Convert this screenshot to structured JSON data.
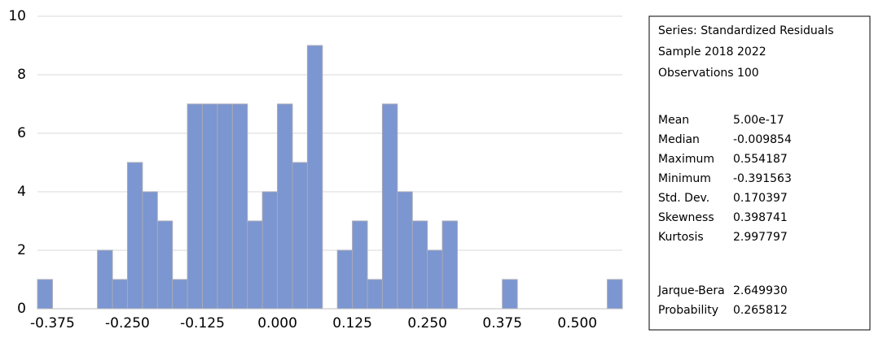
{
  "chart_data": {
    "type": "histogram",
    "bins": [
      -0.4,
      -0.375,
      -0.35,
      -0.325,
      -0.3,
      -0.275,
      -0.25,
      -0.225,
      -0.2,
      -0.175,
      -0.15,
      -0.125,
      -0.1,
      -0.075,
      -0.05,
      -0.025,
      0.0,
      0.025,
      0.05,
      0.075,
      0.1,
      0.125,
      0.15,
      0.175,
      0.2,
      0.225,
      0.25,
      0.275,
      0.3,
      0.325,
      0.35,
      0.375,
      0.4,
      0.425,
      0.45,
      0.475,
      0.5,
      0.525,
      0.55,
      0.575
    ],
    "values": [
      1,
      0,
      0,
      0,
      2,
      1,
      5,
      4,
      3,
      1,
      7,
      7,
      7,
      7,
      3,
      4,
      7,
      5,
      9,
      0,
      2,
      3,
      1,
      7,
      4,
      3,
      2,
      3,
      0,
      0,
      0,
      1,
      0,
      0,
      0,
      0,
      0,
      0,
      1
    ],
    "color": "#7b96d0",
    "xlim": [
      -0.4,
      0.575
    ],
    "xticks": [
      {
        "value": -0.375,
        "label": "-0.375"
      },
      {
        "value": -0.25,
        "label": "-0.250"
      },
      {
        "value": -0.125,
        "label": "-0.125"
      },
      {
        "value": 0,
        "label": "0.000"
      },
      {
        "value": 0.125,
        "label": "0.125"
      },
      {
        "value": 0.25,
        "label": "0.250"
      },
      {
        "value": 0.375,
        "label": "0.375"
      },
      {
        "value": 0.5,
        "label": "0.500"
      }
    ],
    "ylim": [
      0,
      10
    ],
    "yticks": [
      0,
      2,
      4,
      6,
      8,
      10
    ],
    "grid": true
  },
  "stats_box": {
    "header": [
      "Series: Standardized Residuals",
      "Sample 2018 2022",
      "Observations 100"
    ],
    "rows": [
      [
        "Mean",
        "5.00e-17"
      ],
      [
        "Median",
        "-0.009854"
      ],
      [
        "Maximum",
        "0.554187"
      ],
      [
        "Minimum",
        "-0.391563"
      ],
      [
        "Std. Dev.",
        "0.170397"
      ],
      [
        "Skewness",
        "0.398741"
      ],
      [
        "Kurtosis",
        "2.997797"
      ]
    ],
    "tests": [
      [
        "Jarque-Bera",
        "2.649930"
      ],
      [
        "Probability",
        "0.265812"
      ]
    ]
  }
}
